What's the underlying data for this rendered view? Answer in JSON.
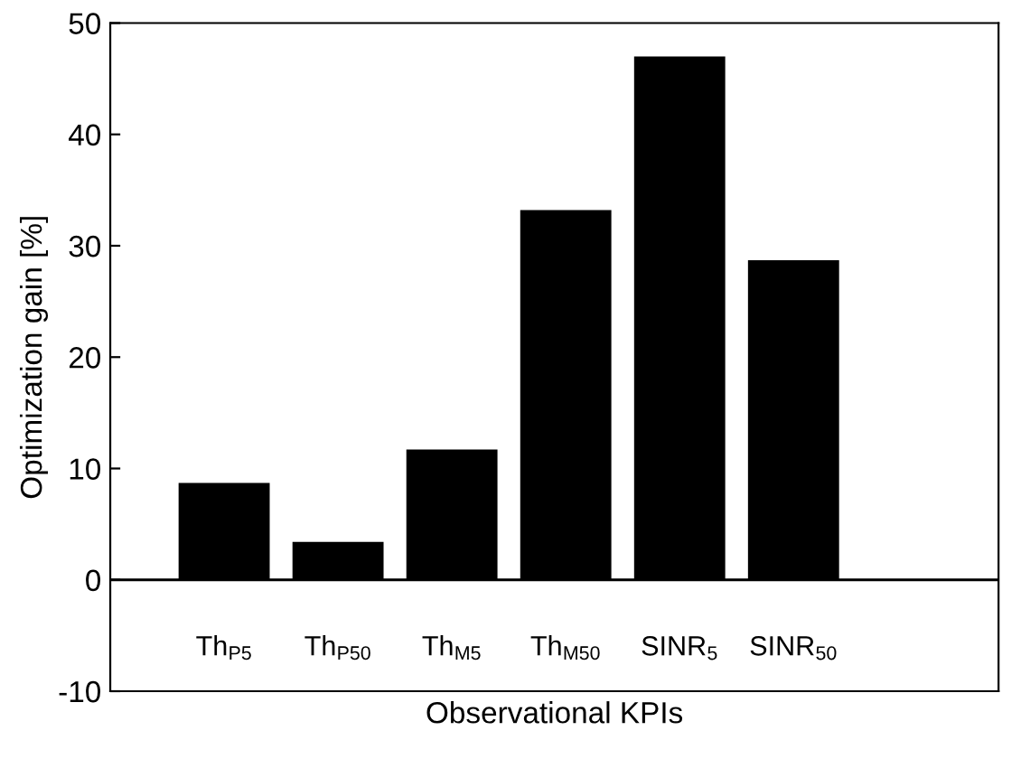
{
  "chart_data": {
    "type": "bar",
    "xlabel": "Observational KPIs",
    "ylabel": "Optimization gain [%]",
    "categories": [
      "Th$_{P5}$",
      "Th$_{P50}$",
      "Th$_{M5}$",
      "Th$_{M50}$",
      "SINR$_{5}$",
      "SINR$_{50}$"
    ],
    "values": [
      8.7,
      3.4,
      11.7,
      33.2,
      47.0,
      28.7
    ],
    "color": "#000000",
    "ylim": [
      -10,
      50
    ],
    "yticks": [
      -10,
      0,
      10,
      20,
      30,
      40,
      50
    ],
    "ref_lines": [
      {
        "axis": "y",
        "value": 0,
        "label": null,
        "color": "#000000"
      }
    ],
    "grid": false
  }
}
